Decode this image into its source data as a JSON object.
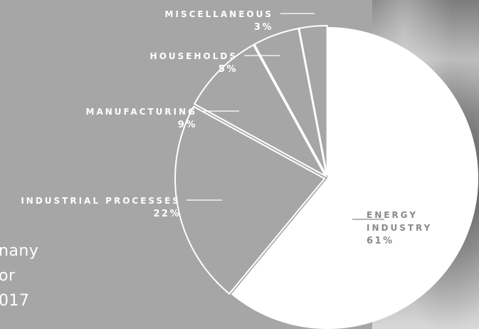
{
  "title_lines": [
    "nany",
    "or",
    "017"
  ],
  "colors": {
    "background": "#a6a6a6",
    "slice_fill_large": "#ffffff",
    "slice_outline": "#ffffff",
    "label_white": "#ffffff",
    "label_dark": "#8a8a8a"
  },
  "chart_data": {
    "type": "pie",
    "start_angle_deg": 0,
    "direction": "clockwise",
    "grid": false,
    "legend": "none",
    "slices": [
      {
        "label_lines": [
          "ENERGY",
          "INDUSTRY"
        ],
        "value": 61,
        "display": "61%",
        "style": "filled"
      },
      {
        "label_lines": [
          "INDUSTRIAL PROCESSES"
        ],
        "value": 22,
        "display": "22%",
        "style": "outline"
      },
      {
        "label_lines": [
          "MANUFACTURING"
        ],
        "value": 9,
        "display": "9%",
        "style": "outline"
      },
      {
        "label_lines": [
          "HOUSEHOLDS"
        ],
        "value": 5,
        "display": "5%",
        "style": "outline"
      },
      {
        "label_lines": [
          "MISCELLANEOUS"
        ],
        "value": 3,
        "display": "3%",
        "style": "outline"
      }
    ]
  }
}
